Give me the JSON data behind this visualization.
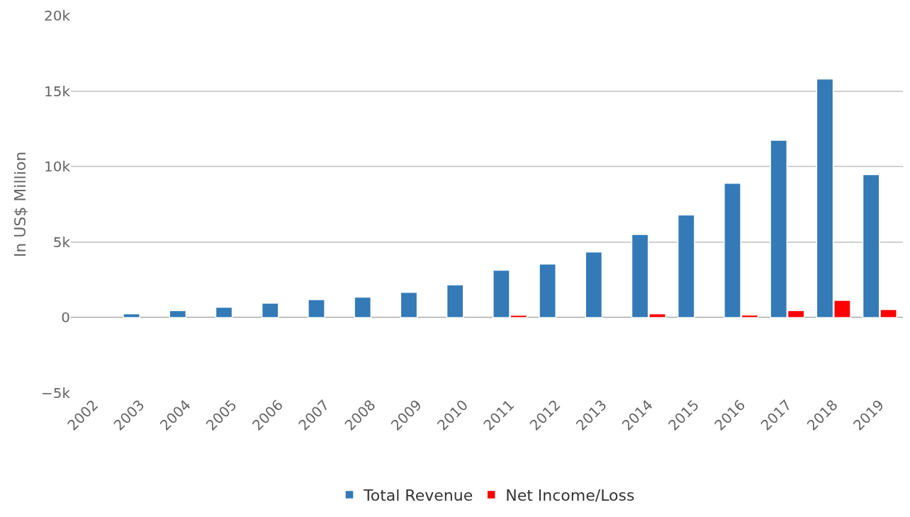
{
  "chart_data": {
    "type": "bar",
    "ylabel": "In US$ Million",
    "categories": [
      "2002",
      "2003",
      "2004",
      "2005",
      "2006",
      "2007",
      "2008",
      "2009",
      "2010",
      "2011",
      "2012",
      "2013",
      "2014",
      "2015",
      "2016",
      "2017",
      "2018",
      "2019"
    ],
    "series": [
      {
        "name": "Total Revenue",
        "color": "#337ab7",
        "values": [
          null,
          250,
          470,
          690,
          960,
          1190,
          1360,
          1670,
          2160,
          3140,
          3550,
          4350,
          5510,
          6800,
          8890,
          11740,
          15800,
          9470
        ]
      },
      {
        "name": "Net Income/Loss",
        "color": "#ff0000",
        "values": [
          null,
          null,
          null,
          null,
          null,
          null,
          null,
          null,
          null,
          160,
          null,
          null,
          250,
          null,
          170,
          470,
          1140,
          530
        ]
      }
    ],
    "ylim": [
      -5000,
      20000
    ],
    "yticks": [
      {
        "value": -5000,
        "label": "−5k"
      },
      {
        "value": 0,
        "label": "0"
      },
      {
        "value": 5000,
        "label": "5k"
      },
      {
        "value": 10000,
        "label": "10k"
      },
      {
        "value": 15000,
        "label": "15k"
      },
      {
        "value": 20000,
        "label": "20k"
      }
    ],
    "grid": "y",
    "legend": "bottom"
  }
}
